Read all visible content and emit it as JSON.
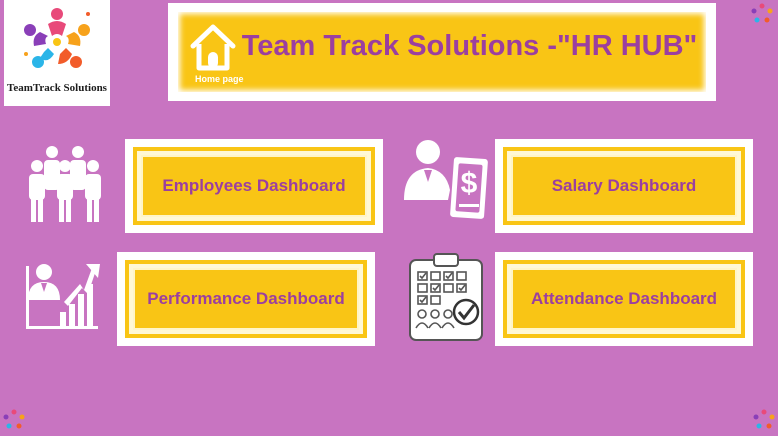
{
  "logo": {
    "name": "TeamTrack Solutions"
  },
  "header": {
    "title": "Team Track Solutions -\"HR HUB\"",
    "home_label": "Home page"
  },
  "dashboards": {
    "employees": "Employees Dashboard",
    "salary": "Salary Dashboard",
    "performance": "Performance Dashboard",
    "attendance": "Attendance Dashboard"
  },
  "colors": {
    "background": "#c874c1",
    "accent_yellow": "#f9c515",
    "text_purple": "#9b3fa0"
  }
}
